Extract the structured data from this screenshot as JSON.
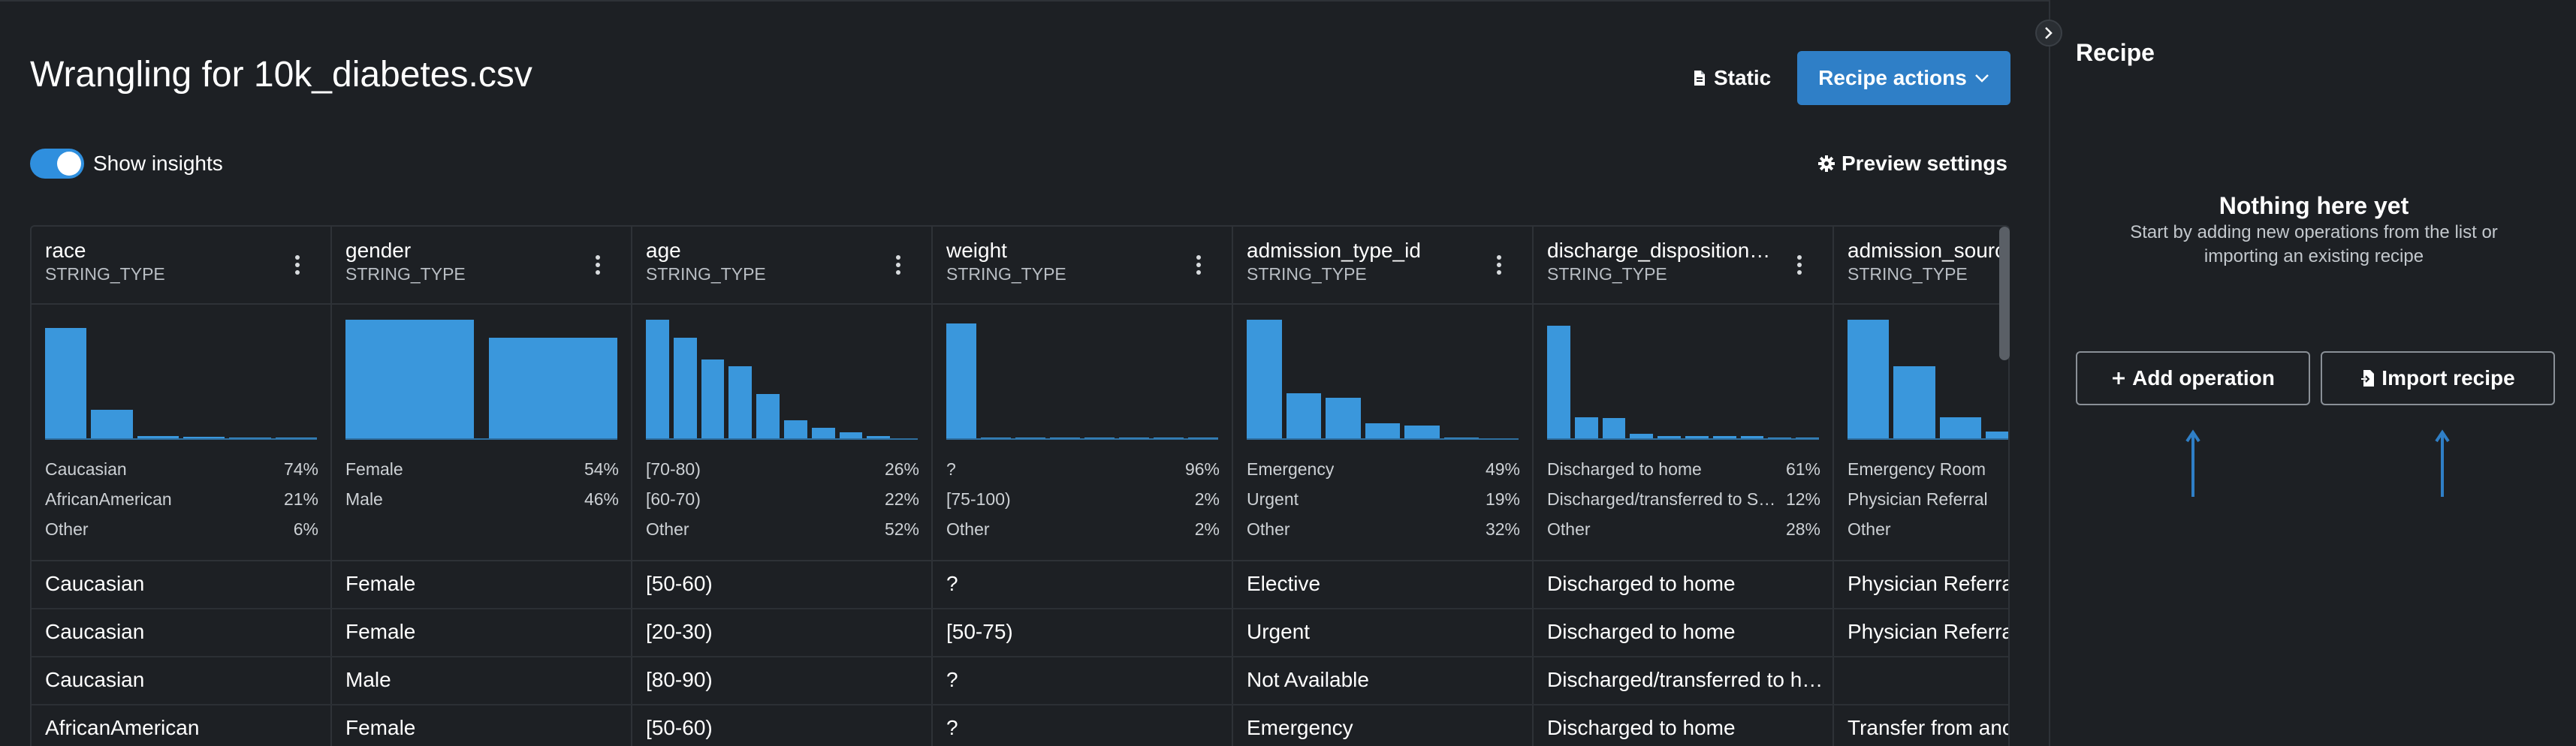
{
  "header": {
    "title": "Wrangling for 10k_diabetes.csv",
    "static_label": "Static",
    "recipe_actions_label": "Recipe actions",
    "show_insights_label": "Show insights",
    "show_insights_on": true,
    "preview_settings_label": "Preview settings"
  },
  "colors": {
    "accent": "#2f7fc7",
    "bar": "#3a97dc",
    "background": "#1d2024"
  },
  "columns": [
    {
      "name": "race",
      "type": "STRING_TYPE",
      "hist": [
        0.93,
        0.25,
        0.03,
        0.025,
        0.02,
        0.02
      ],
      "stats": [
        {
          "label": "Caucasian",
          "pct": "74%"
        },
        {
          "label": "AfricanAmerican",
          "pct": "21%"
        },
        {
          "label": "Other",
          "pct": "6%"
        }
      ]
    },
    {
      "name": "gender",
      "type": "STRING_TYPE",
      "hist": [
        1.0,
        0.85
      ],
      "stats": [
        {
          "label": "Female",
          "pct": "54%"
        },
        {
          "label": "Male",
          "pct": "46%"
        }
      ]
    },
    {
      "name": "age",
      "type": "STRING_TYPE",
      "hist": [
        1.0,
        0.85,
        0.67,
        0.61,
        0.38,
        0.16,
        0.1,
        0.06,
        0.03,
        0.015
      ],
      "stats": [
        {
          "label": "[70-80)",
          "pct": "26%"
        },
        {
          "label": "[60-70)",
          "pct": "22%"
        },
        {
          "label": "Other",
          "pct": "52%"
        }
      ]
    },
    {
      "name": "weight",
      "type": "STRING_TYPE",
      "hist": [
        0.97,
        0.02,
        0.02,
        0.02,
        0.02,
        0.02,
        0.02,
        0.02
      ],
      "stats": [
        {
          "label": "?",
          "pct": "96%"
        },
        {
          "label": "[75-100)",
          "pct": "2%"
        },
        {
          "label": "Other",
          "pct": "2%"
        }
      ]
    },
    {
      "name": "admission_type_id",
      "type": "STRING_TYPE",
      "hist": [
        1.0,
        0.39,
        0.35,
        0.14,
        0.12,
        0.02,
        0.01
      ],
      "stats": [
        {
          "label": "Emergency",
          "pct": "49%"
        },
        {
          "label": "Urgent",
          "pct": "19%"
        },
        {
          "label": "Other",
          "pct": "32%"
        }
      ]
    },
    {
      "name": "discharge_disposition…",
      "type": "STRING_TYPE",
      "hist": [
        0.95,
        0.19,
        0.18,
        0.05,
        0.03,
        0.03,
        0.03,
        0.03,
        0.02,
        0.02
      ],
      "stats": [
        {
          "label": "Discharged to home",
          "pct": "61%"
        },
        {
          "label": "Discharged/transferred to S…",
          "pct": "12%"
        },
        {
          "label": "Other",
          "pct": "28%"
        }
      ]
    },
    {
      "name": "admission_source",
      "type": "STRING_TYPE",
      "hist": [
        1.0,
        0.61,
        0.19,
        0.07,
        0.06,
        0.04
      ],
      "stats": [
        {
          "label": "Emergency Room",
          "pct": ""
        },
        {
          "label": "Physician Referral",
          "pct": ""
        },
        {
          "label": "Other",
          "pct": ""
        }
      ]
    }
  ],
  "rows": [
    [
      "Caucasian",
      "Female",
      "[50-60)",
      "?",
      "Elective",
      "Discharged to home",
      "Physician Referral"
    ],
    [
      "Caucasian",
      "Female",
      "[20-30)",
      "[50-75)",
      "Urgent",
      "Discharged to home",
      "Physician Referral"
    ],
    [
      "Caucasian",
      "Male",
      "[80-90)",
      "?",
      "Not Available",
      "Discharged/transferred to h…",
      ""
    ],
    [
      "AfricanAmerican",
      "Female",
      "[50-60)",
      "?",
      "Emergency",
      "Discharged to home",
      "Transfer from another"
    ]
  ],
  "panel": {
    "title": "Recipe",
    "empty_title": "Nothing here yet",
    "empty_desc": "Start by adding new operations from the list or importing an existing recipe",
    "add_operation_label": "Add operation",
    "import_recipe_label": "Import recipe"
  }
}
